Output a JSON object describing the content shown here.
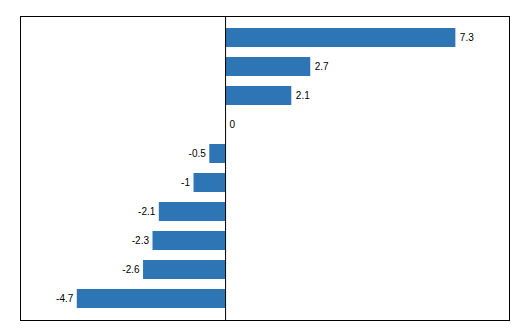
{
  "chart_data": {
    "type": "bar",
    "orientation": "horizontal",
    "categories": [
      null,
      null,
      null,
      null,
      null,
      null,
      null,
      null,
      null,
      null
    ],
    "values": [
      7.3,
      2.7,
      2.1,
      0,
      -0.5,
      -1,
      -2.1,
      -2.3,
      -2.6,
      -4.7
    ],
    "color": "#2E75B6",
    "xlim": [
      -6.5,
      9.0
    ],
    "xticks": [],
    "data_labels": true,
    "tick_labels": false,
    "grid": false
  }
}
